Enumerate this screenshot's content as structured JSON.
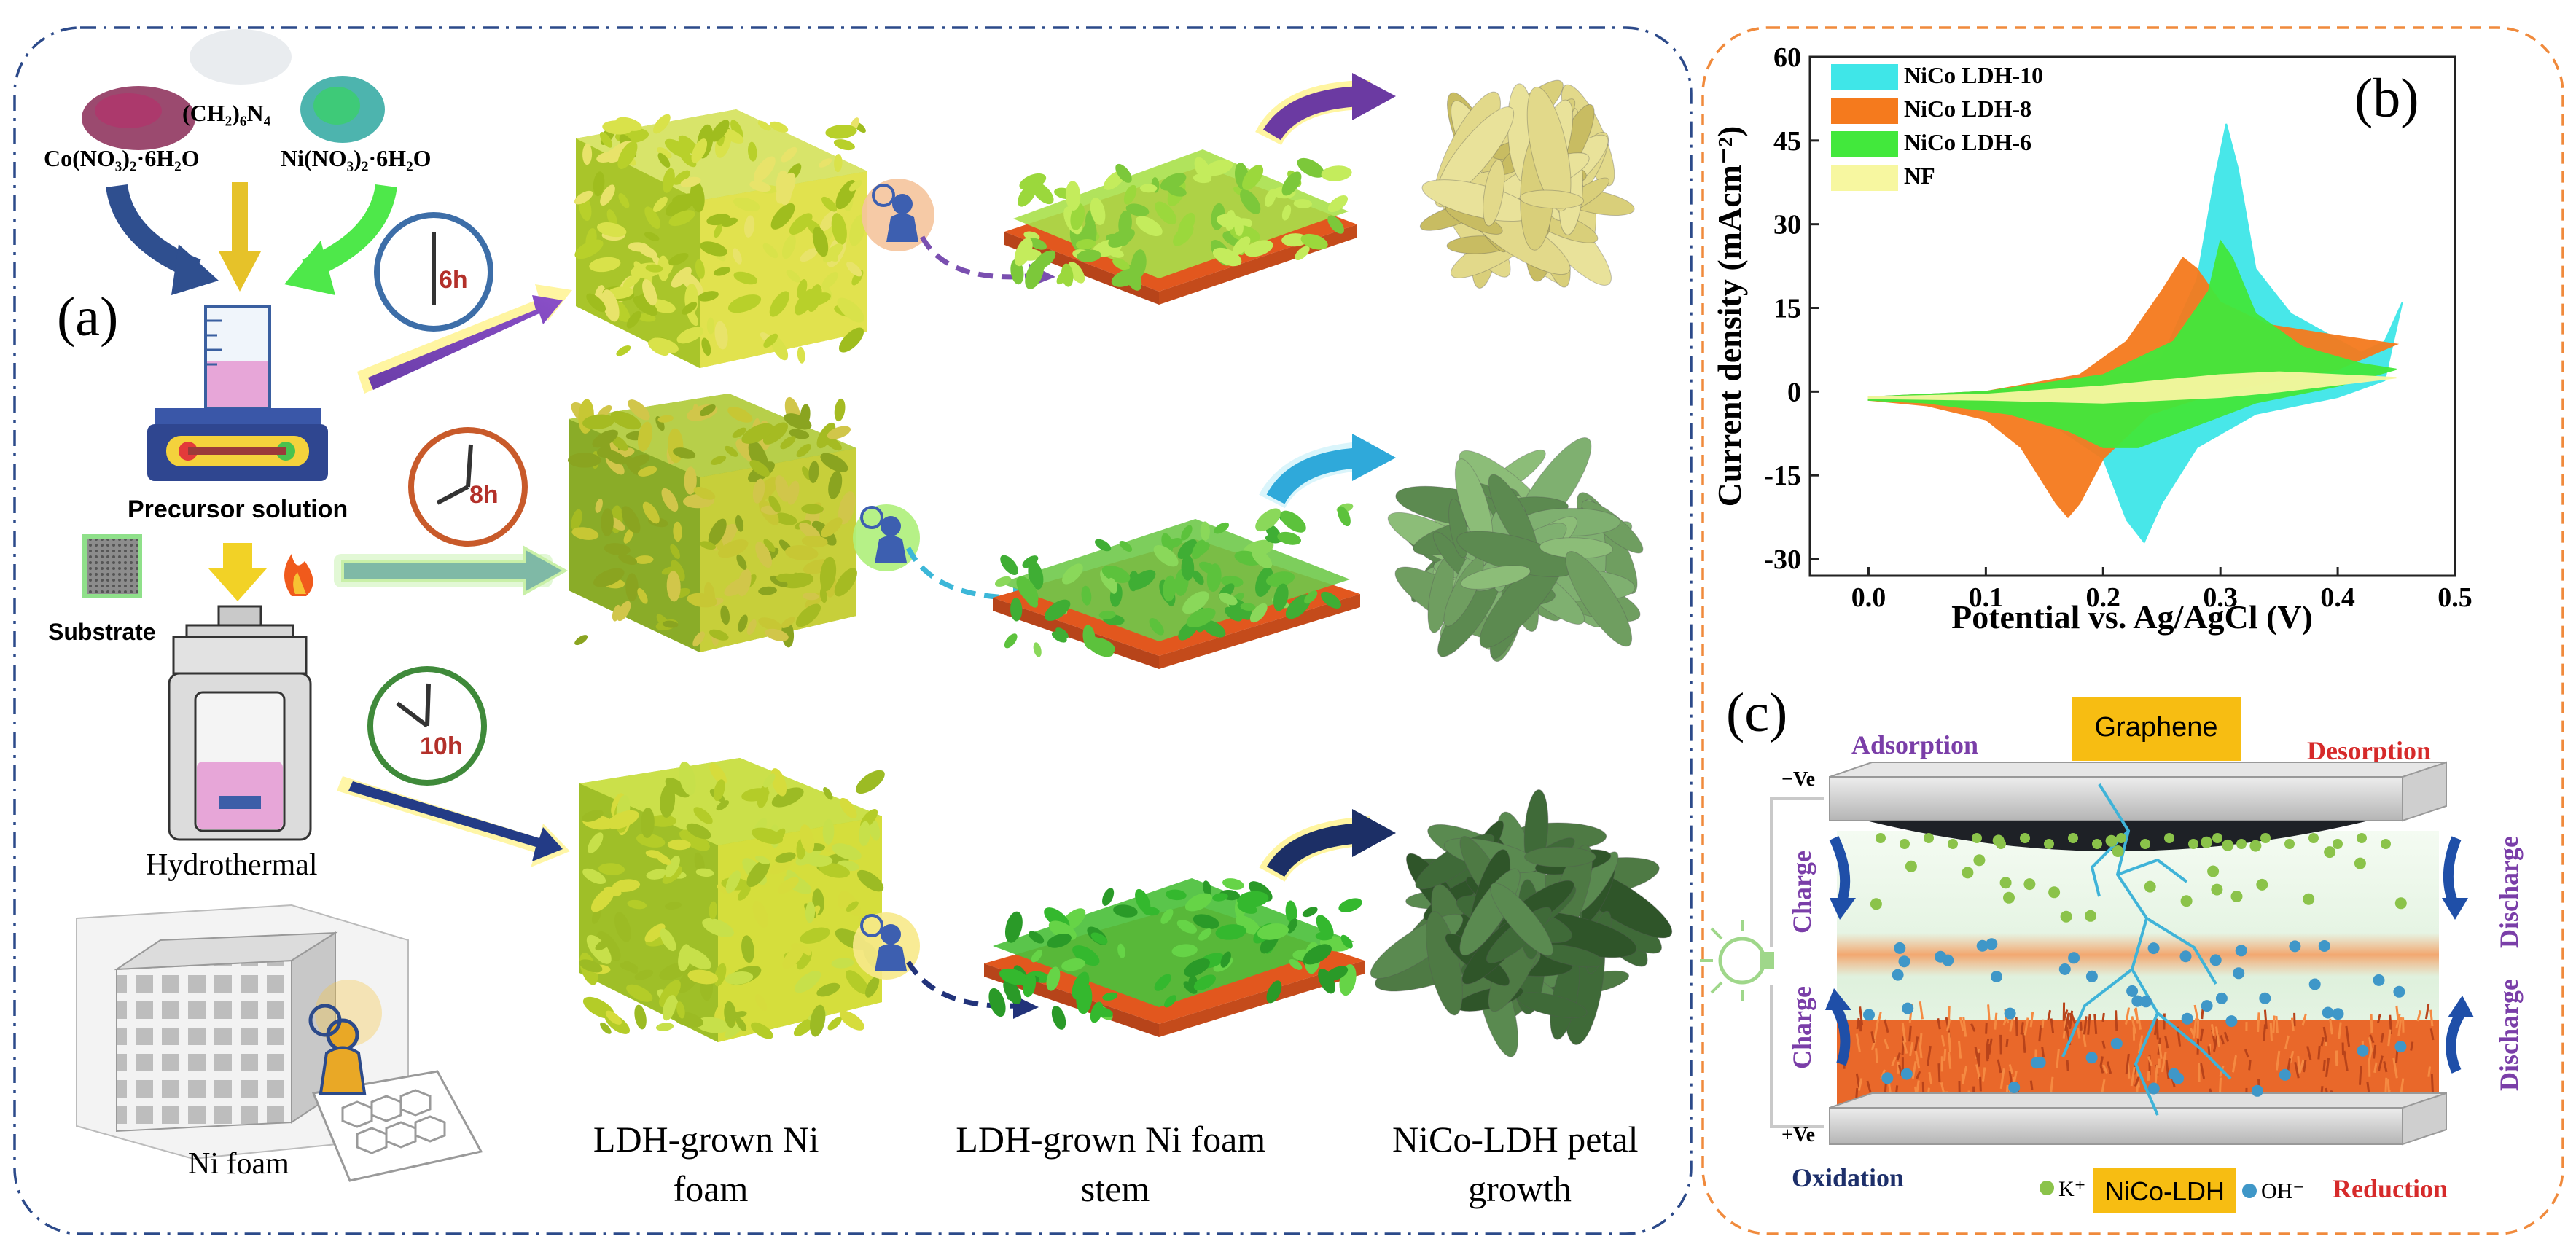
{
  "panel_a": {
    "label": "(a)",
    "reagents": {
      "cobalt": "Co(NO₃)₂·6H₂O",
      "hmt": "(CH₂)₆N₄",
      "nickel": "Ni(NO₃)₂·6H₂O"
    },
    "precursor": "Precursor solution",
    "substrate": "Substrate",
    "hydrothermal": "Hydrothermal",
    "ni_foam": "Ni foam",
    "times": [
      "6h",
      "8h",
      "10h"
    ],
    "columns": [
      "LDH-grown Ni foam",
      "LDH-grown Ni foam stem",
      "NiCo-LDH petal growth"
    ],
    "column_lines": [
      [
        "LDH-grown Ni",
        "foam"
      ],
      [
        "LDH-grown Ni foam",
        "stem"
      ],
      [
        "NiCo-LDH petal",
        "growth"
      ]
    ],
    "colors": {
      "row1": "#e2d98a",
      "row2": "#7fb070",
      "row3": "#4e7a44",
      "frame": "#2c4a8a"
    }
  },
  "panel_b": {
    "label": "(b)",
    "xlabel": "Potential vs. Ag/AgCl (V)",
    "ylabel": "Current density (mAcm⁻²)",
    "xticks": [
      "0.0",
      "0.1",
      "0.2",
      "0.3",
      "0.4",
      "0.5"
    ],
    "yticks": [
      "-30",
      "-15",
      "0",
      "15",
      "30",
      "45",
      "60"
    ],
    "legend": [
      {
        "name": "NiCo LDH-10",
        "color": "#3fe6e8"
      },
      {
        "name": "NiCo LDH-8",
        "color": "#f57a1d"
      },
      {
        "name": "NiCo LDH-6",
        "color": "#42e83c"
      },
      {
        "name": "NF",
        "color": "#f7f7a0"
      }
    ]
  },
  "panel_c": {
    "label": "(c)",
    "graphene": "Graphene",
    "adsorption": "Adsorption",
    "desorption": "Desorption",
    "oxidation": "Oxidation",
    "reduction": "Reduction",
    "neg": "−Ve",
    "pos": "+Ve",
    "charge_top": "Charge",
    "charge_bottom": "Charge",
    "discharge_top": "Discharge",
    "discharge_bottom": "Discharge",
    "ldh": "NiCo-LDH",
    "k_ion": "K⁺",
    "oh_ion": "OH⁻"
  },
  "chart_data": {
    "type": "line",
    "xlabel": "Potential vs. Ag/AgCl (V)",
    "ylabel": "Current density (mAcm⁻²)",
    "xlim": [
      -0.05,
      0.5
    ],
    "ylim": [
      -33,
      60
    ],
    "xticks": [
      0.0,
      0.1,
      0.2,
      0.3,
      0.4,
      0.5
    ],
    "yticks": [
      -30,
      -15,
      0,
      15,
      30,
      45,
      60
    ],
    "legend_position": "top-left",
    "series": [
      {
        "name": "NiCo LDH-10",
        "color": "#3fe6e8",
        "anodic": [
          [
            0.0,
            -1
          ],
          [
            0.1,
            0
          ],
          [
            0.2,
            2
          ],
          [
            0.25,
            6
          ],
          [
            0.28,
            20
          ],
          [
            0.295,
            38
          ],
          [
            0.305,
            48
          ],
          [
            0.315,
            40
          ],
          [
            0.33,
            22
          ],
          [
            0.36,
            14
          ],
          [
            0.42,
            7
          ],
          [
            0.44,
            9
          ],
          [
            0.455,
            16
          ]
        ],
        "cathodic": [
          [
            0.455,
            16
          ],
          [
            0.44,
            2
          ],
          [
            0.4,
            -1
          ],
          [
            0.33,
            -4
          ],
          [
            0.28,
            -10
          ],
          [
            0.25,
            -20
          ],
          [
            0.235,
            -27
          ],
          [
            0.22,
            -23
          ],
          [
            0.2,
            -12
          ],
          [
            0.15,
            -5
          ],
          [
            0.1,
            -3
          ],
          [
            0.05,
            -2
          ],
          [
            0.0,
            -1.5
          ]
        ]
      },
      {
        "name": "NiCo LDH-8",
        "color": "#f57a1d",
        "anodic": [
          [
            0.0,
            -1
          ],
          [
            0.1,
            0
          ],
          [
            0.18,
            3
          ],
          [
            0.22,
            9
          ],
          [
            0.25,
            18
          ],
          [
            0.268,
            24
          ],
          [
            0.28,
            22
          ],
          [
            0.3,
            16
          ],
          [
            0.34,
            12
          ],
          [
            0.4,
            10
          ],
          [
            0.45,
            8.5
          ]
        ],
        "cathodic": [
          [
            0.45,
            8.5
          ],
          [
            0.4,
            4
          ],
          [
            0.3,
            0
          ],
          [
            0.24,
            -4
          ],
          [
            0.2,
            -12
          ],
          [
            0.18,
            -20
          ],
          [
            0.17,
            -22.5
          ],
          [
            0.16,
            -20
          ],
          [
            0.13,
            -10
          ],
          [
            0.1,
            -5
          ],
          [
            0.05,
            -2.5
          ],
          [
            0.0,
            -1.5
          ]
        ]
      },
      {
        "name": "NiCo LDH-6",
        "color": "#42e83c",
        "anodic": [
          [
            0.0,
            -1
          ],
          [
            0.1,
            0
          ],
          [
            0.2,
            3
          ],
          [
            0.26,
            9
          ],
          [
            0.29,
            18
          ],
          [
            0.3,
            27
          ],
          [
            0.31,
            24
          ],
          [
            0.33,
            14
          ],
          [
            0.37,
            8
          ],
          [
            0.42,
            5
          ],
          [
            0.45,
            4
          ]
        ],
        "cathodic": [
          [
            0.45,
            4
          ],
          [
            0.4,
            1
          ],
          [
            0.33,
            -2
          ],
          [
            0.28,
            -6
          ],
          [
            0.23,
            -10
          ],
          [
            0.2,
            -10
          ],
          [
            0.17,
            -7
          ],
          [
            0.12,
            -4
          ],
          [
            0.05,
            -2
          ],
          [
            0.0,
            -1.5
          ]
        ]
      },
      {
        "name": "NF",
        "color": "#f7f7a0",
        "anodic": [
          [
            0.0,
            -1
          ],
          [
            0.1,
            -0.5
          ],
          [
            0.2,
            1
          ],
          [
            0.3,
            3
          ],
          [
            0.35,
            3.5
          ],
          [
            0.45,
            2.5
          ]
        ],
        "cathodic": [
          [
            0.45,
            2.5
          ],
          [
            0.35,
            0
          ],
          [
            0.3,
            -1
          ],
          [
            0.2,
            -2
          ],
          [
            0.1,
            -1.5
          ],
          [
            0.0,
            -1.2
          ]
        ]
      }
    ]
  }
}
